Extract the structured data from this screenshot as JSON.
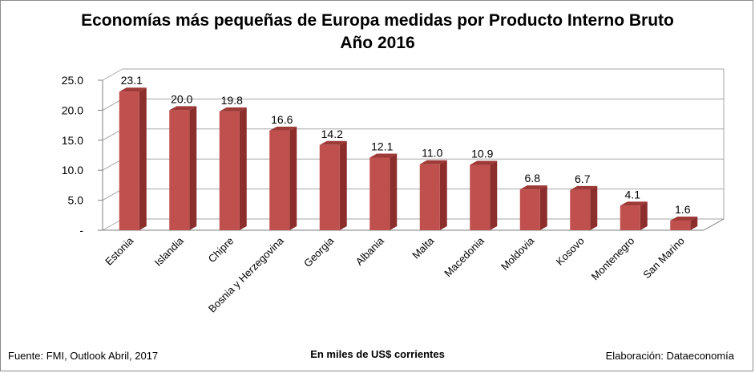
{
  "chart_data": {
    "type": "bar",
    "title": "Economías más pequeñas de Europa medidas por Producto Interno Bruto",
    "subtitle": "Año 2016",
    "xlabel": "",
    "ylabel": "",
    "unit_note": "En  miles de US$ corrientes",
    "categories": [
      "Estonia",
      "Islandia",
      "Chipre",
      "Bosnia y Herzegovina",
      "Georgia",
      "Albania",
      "Malta",
      "Macedonia",
      "Moldovia",
      "Kosovo",
      "Montenegro",
      "San Marino"
    ],
    "values": [
      23.1,
      20.0,
      19.8,
      16.6,
      14.2,
      12.1,
      11.0,
      10.9,
      6.8,
      6.7,
      4.1,
      1.6
    ],
    "value_labels": [
      "23.1",
      "20.0",
      "19.8",
      "16.6",
      "14.2",
      "12.1",
      "11.0",
      "10.9",
      "6.8",
      "6.7",
      "4.1",
      "1.6"
    ],
    "ylim": [
      0,
      25
    ],
    "yticks": [
      0,
      5,
      10,
      15,
      20,
      25
    ],
    "ytick_labels": [
      "-",
      "5.0",
      "10.0",
      "15.0",
      "20.0",
      "25.0"
    ],
    "grid": true,
    "legend": "none",
    "colors": {
      "bar_front": "#c0504d",
      "bar_side": "#8b2e2c",
      "bar_top": "#9e3a37",
      "grid": "#a6a6a6"
    }
  },
  "footer": {
    "source": "Fuente: FMI, Outlook Abril, 2017",
    "units": "En  miles de US$ corrientes",
    "credit": "Elaboración: Dataeconomía"
  }
}
